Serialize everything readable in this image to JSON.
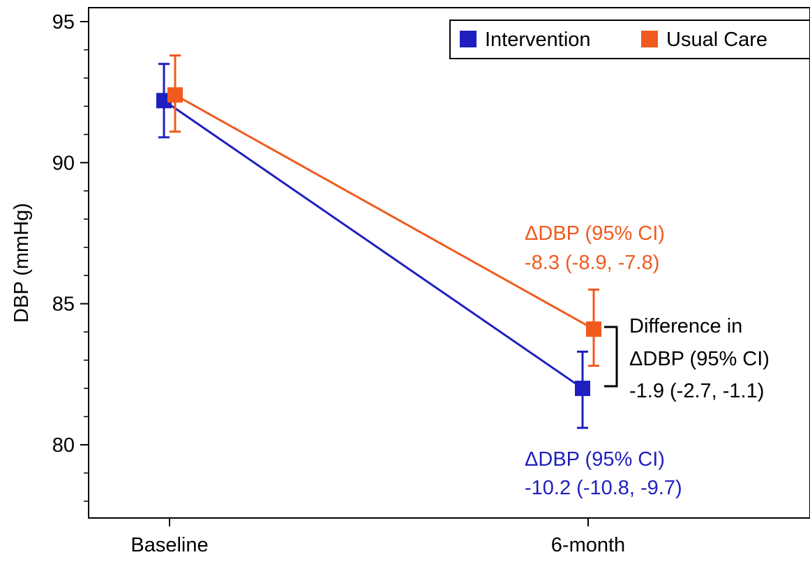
{
  "chart_data": {
    "type": "line",
    "xlabel": "",
    "ylabel": "DBP (mmHg)",
    "categories": [
      "Baseline",
      "6-month"
    ],
    "ylim": [
      77,
      95.5
    ],
    "yticks": [
      80,
      85,
      90,
      95
    ],
    "y_tick_labels": [
      "80",
      "85",
      "90",
      "95"
    ],
    "grid": false,
    "legend_position": "top-right",
    "series": [
      {
        "name": "Intervention",
        "color": "#1f1fbf",
        "marker": "square",
        "values": [
          92.2,
          82.0
        ],
        "ci_lower": [
          90.9,
          80.6
        ],
        "ci_upper": [
          93.5,
          83.3
        ]
      },
      {
        "name": "Usual Care",
        "color": "#f05a1e",
        "marker": "square",
        "values": [
          92.4,
          84.1
        ],
        "ci_lower": [
          91.1,
          82.8
        ],
        "ci_upper": [
          93.8,
          85.5
        ]
      }
    ],
    "annotations": {
      "usual_care_line1": "ΔDBP (95% CI)",
      "usual_care_line2": "-8.3 (-8.9, -7.8)",
      "intervention_line1": "ΔDBP (95% CI)",
      "intervention_line2": "-10.2 (-10.8, -9.7)",
      "difference_line1": "Difference in",
      "difference_line2": "ΔDBP (95% CI)",
      "difference_line3": "-1.9 (-2.7, -1.1)"
    }
  }
}
